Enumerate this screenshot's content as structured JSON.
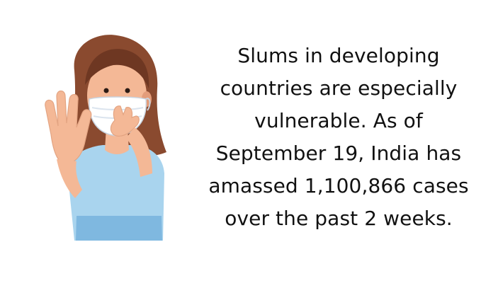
{
  "illustration": {
    "subject": "woman-wearing-face-mask-stop-gesture",
    "colors": {
      "hair": "#8a4a2f",
      "hair_shadow": "#6e3722",
      "skin": "#f4b896",
      "skin_shadow": "#e39c7a",
      "mask": "#ffffff",
      "mask_shadow": "#dbe4ee",
      "shirt": "#a9d4ee",
      "shirt_band": "#7fb8e0",
      "outline": "#e3a482"
    }
  },
  "caption": {
    "lines": [
      "Slums in developing",
      "countries are especially",
      "vulnerable. As of",
      "September 19, India has",
      "amassed 1,100,866 cases",
      "over the past 2 weeks."
    ]
  }
}
